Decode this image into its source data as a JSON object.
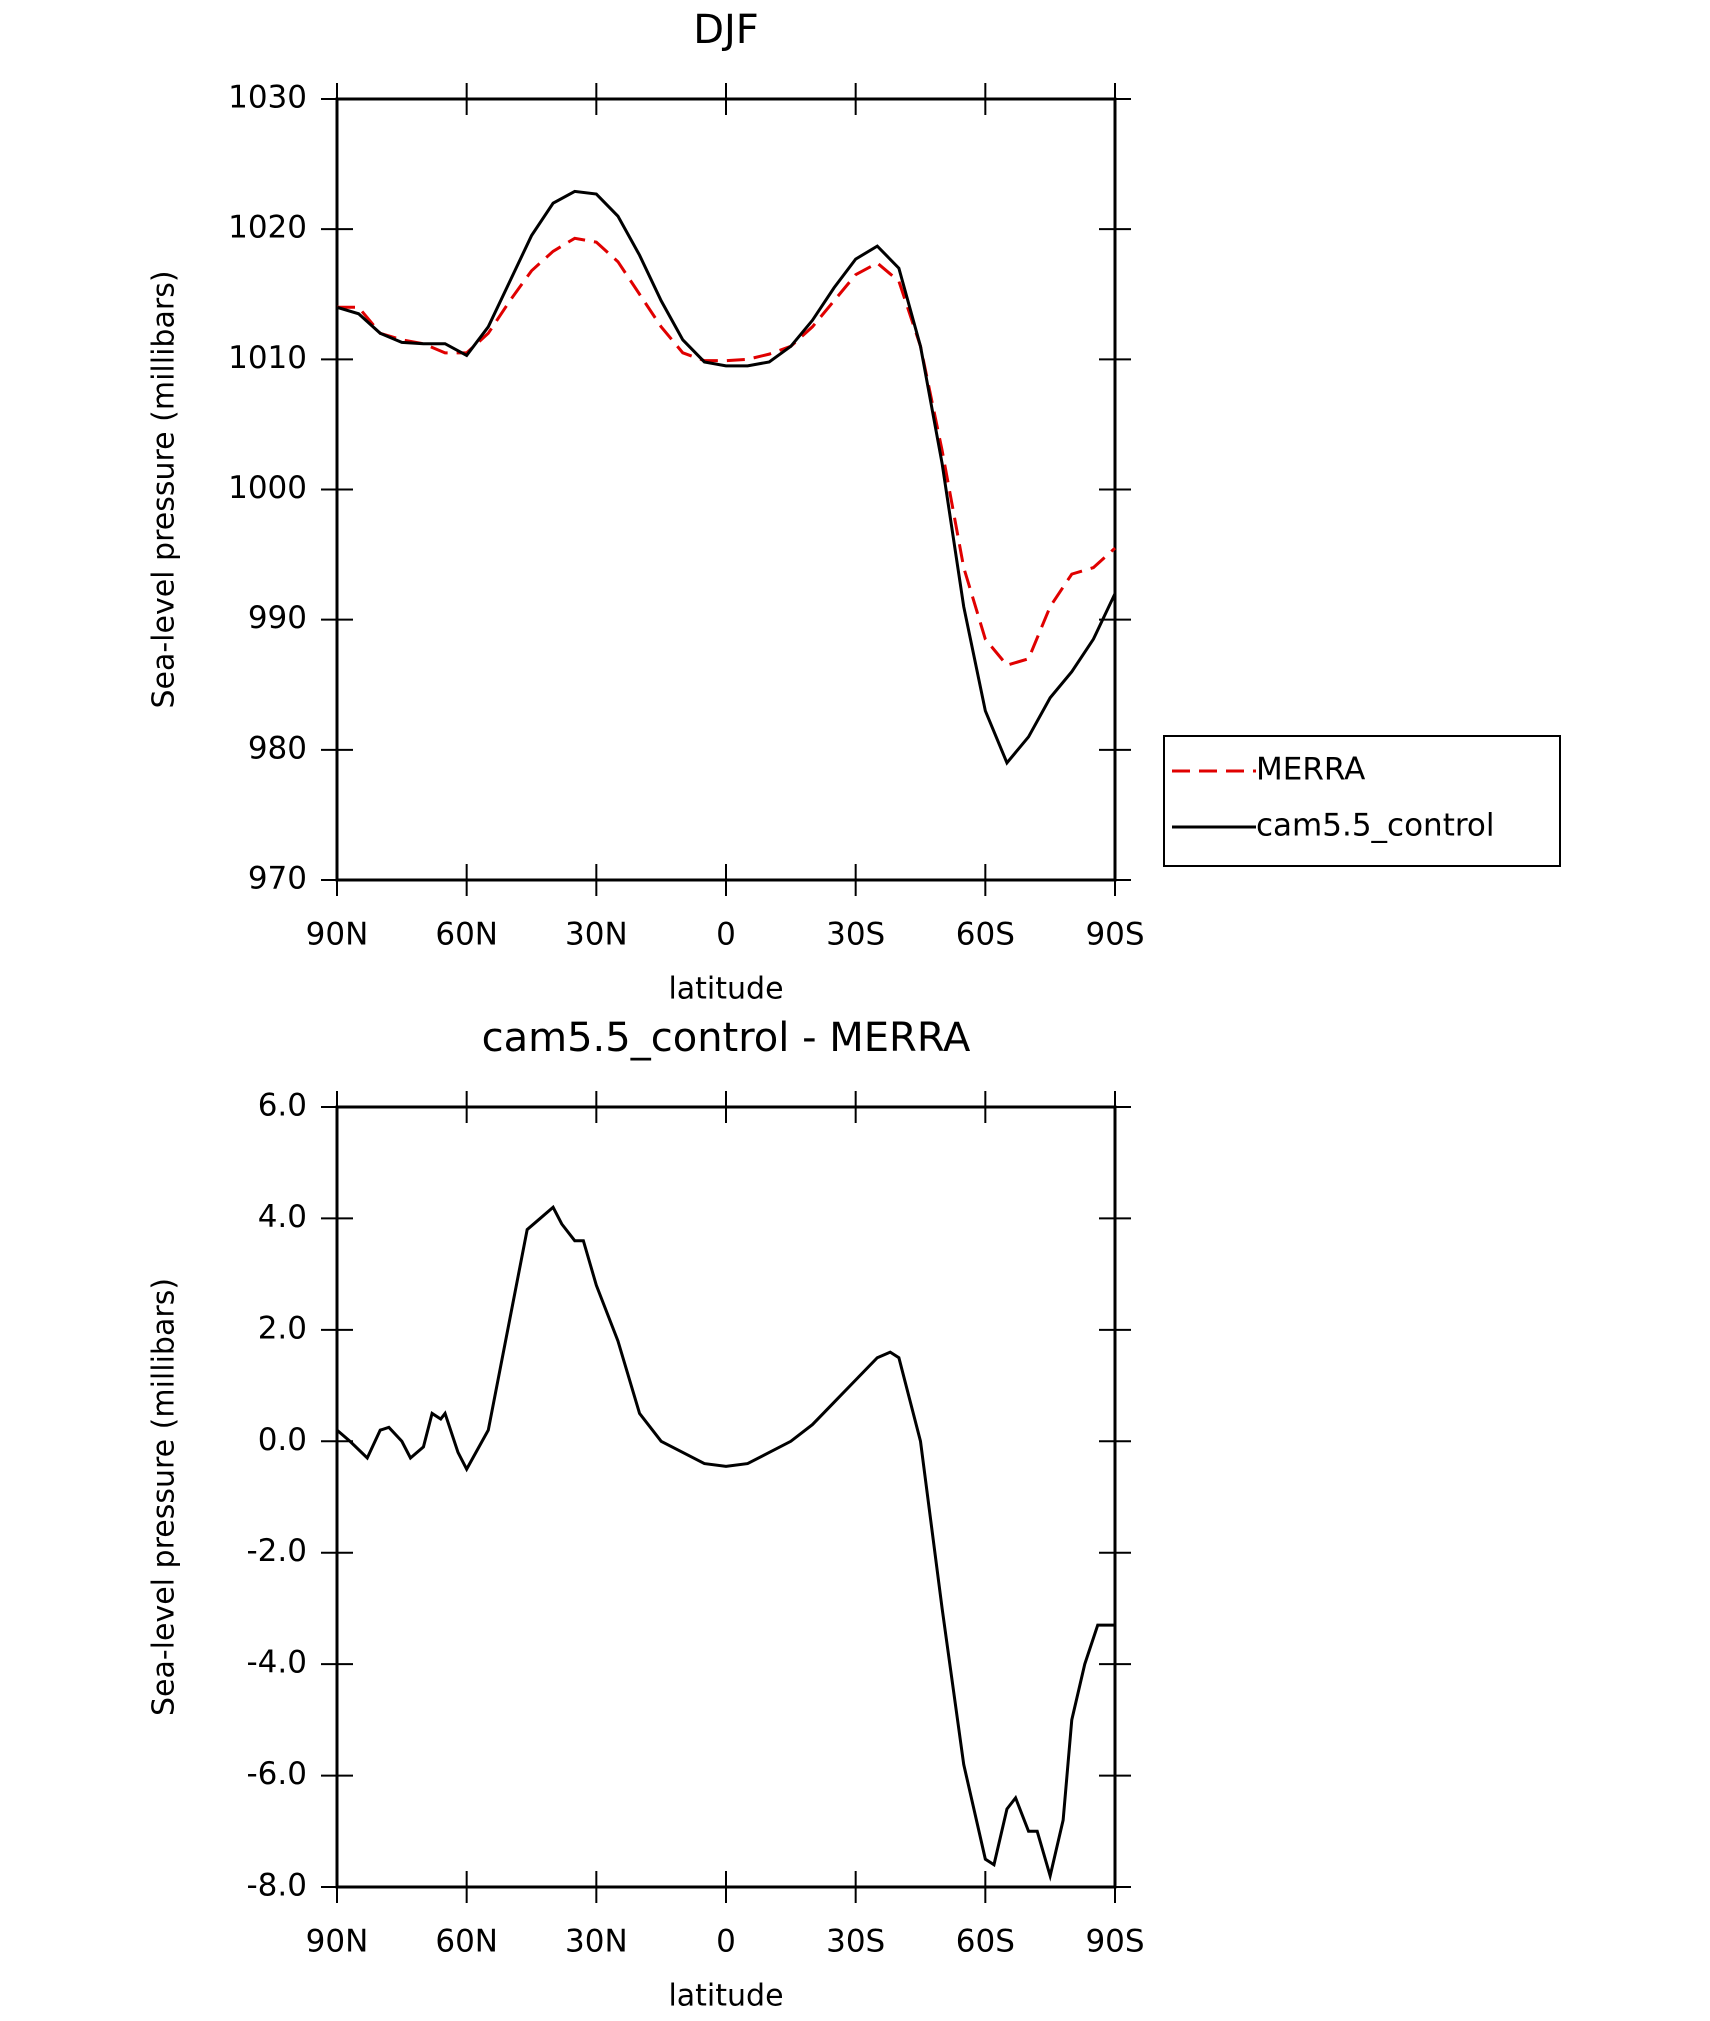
{
  "chart_data": [
    {
      "type": "line",
      "title": "DJF",
      "xlabel": "latitude",
      "ylabel": "Sea-level pressure (millibars)",
      "x": [
        90,
        85,
        80,
        75,
        70,
        65,
        60,
        55,
        50,
        45,
        40,
        35,
        30,
        25,
        20,
        15,
        10,
        5,
        0,
        -5,
        -10,
        -15,
        -20,
        -25,
        -30,
        -35,
        -40,
        -45,
        -50,
        -55,
        -60,
        -65,
        -70,
        -75,
        -80,
        -85,
        -90
      ],
      "xlim": [
        90,
        -90
      ],
      "xticks": [
        {
          "value": 90,
          "label": "90N"
        },
        {
          "value": 60,
          "label": "60N"
        },
        {
          "value": 30,
          "label": "30N"
        },
        0,
        {
          "value": -30,
          "label": "30S"
        },
        {
          "value": -60,
          "label": "60S"
        },
        {
          "value": -90,
          "label": "90S"
        }
      ],
      "ylim": [
        970,
        1030
      ],
      "yticks": [
        970,
        980,
        990,
        1000,
        1010,
        1020,
        1030
      ],
      "legend": "right",
      "series": [
        {
          "name": "MERRA",
          "color": "#e00000",
          "dashed": true,
          "values": [
            1014,
            1014,
            1012,
            1011.5,
            1011.2,
            1010.5,
            1010.5,
            1012,
            1014.5,
            1016.8,
            1018.3,
            1019.3,
            1019,
            1017.5,
            1015,
            1012.5,
            1010.5,
            1009.9,
            1009.9,
            1010,
            1010.4,
            1011,
            1012.5,
            1014.5,
            1016.5,
            1017.4,
            1016,
            1011,
            1003,
            994,
            988.5,
            986.5,
            987,
            991,
            993.5,
            994,
            995.5
          ]
        },
        {
          "name": "cam5.5_control",
          "color": "#000000",
          "dashed": false,
          "values": [
            1014,
            1013.5,
            1012,
            1011.3,
            1011.2,
            1011.2,
            1010.3,
            1012.5,
            1016,
            1019.5,
            1022,
            1022.9,
            1022.7,
            1021,
            1018,
            1014.5,
            1011.5,
            1009.8,
            1009.5,
            1009.5,
            1009.8,
            1011,
            1013,
            1015.5,
            1017.7,
            1018.7,
            1017,
            1011,
            1002,
            991,
            983,
            979,
            981,
            984,
            986,
            988.5,
            992
          ]
        }
      ]
    },
    {
      "type": "line",
      "title": "cam5.5_control - MERRA",
      "xlabel": "latitude",
      "ylabel": "Sea-level pressure (millibars)",
      "x": [
        90,
        87,
        83,
        80,
        78,
        75,
        73,
        70,
        68,
        66,
        65,
        62,
        60,
        55,
        50,
        46,
        43,
        40,
        38,
        35,
        33,
        30,
        25,
        20,
        15,
        10,
        5,
        0,
        -5,
        -10,
        -15,
        -20,
        -25,
        -30,
        -35,
        -38,
        -40,
        -45,
        -50,
        -55,
        -60,
        -62,
        -65,
        -67,
        -70,
        -72,
        -75,
        -78,
        -80,
        -83,
        -86,
        -90
      ],
      "xlim": [
        90,
        -90
      ],
      "xticks": [
        {
          "value": 90,
          "label": "90N"
        },
        {
          "value": 60,
          "label": "60N"
        },
        {
          "value": 30,
          "label": "30N"
        },
        0,
        {
          "value": -30,
          "label": "30S"
        },
        {
          "value": -60,
          "label": "60S"
        },
        {
          "value": -90,
          "label": "90S"
        }
      ],
      "ylim": [
        -8,
        6
      ],
      "yticks": [
        {
          "value": -8,
          "label": "-8.0"
        },
        {
          "value": -6,
          "label": "-6.0"
        },
        {
          "value": -4,
          "label": "-4.0"
        },
        {
          "value": -2,
          "label": "-2.0"
        },
        {
          "value": 0,
          "label": "0.0"
        },
        {
          "value": 2,
          "label": "2.0"
        },
        {
          "value": 4,
          "label": "4.0"
        },
        {
          "value": 6,
          "label": "6.0"
        }
      ],
      "series": [
        {
          "color": "#000000",
          "dashed": false,
          "values": [
            0.2,
            0,
            -0.3,
            0.2,
            0.25,
            0,
            -0.3,
            -0.1,
            0.5,
            0.4,
            0.5,
            -0.2,
            -0.5,
            0.2,
            2.2,
            3.8,
            4.0,
            4.2,
            3.9,
            3.6,
            3.6,
            2.8,
            1.8,
            0.5,
            0,
            -0.2,
            -0.4,
            -0.45,
            -0.4,
            -0.2,
            0,
            0.3,
            0.7,
            1.1,
            1.5,
            1.6,
            1.5,
            0,
            -3,
            -5.8,
            -7.5,
            -7.6,
            -6.6,
            -6.4,
            -7.0,
            -7.0,
            -7.8,
            -6.8,
            -5.0,
            -4.0,
            -3.3,
            -3.3
          ]
        }
      ]
    }
  ]
}
